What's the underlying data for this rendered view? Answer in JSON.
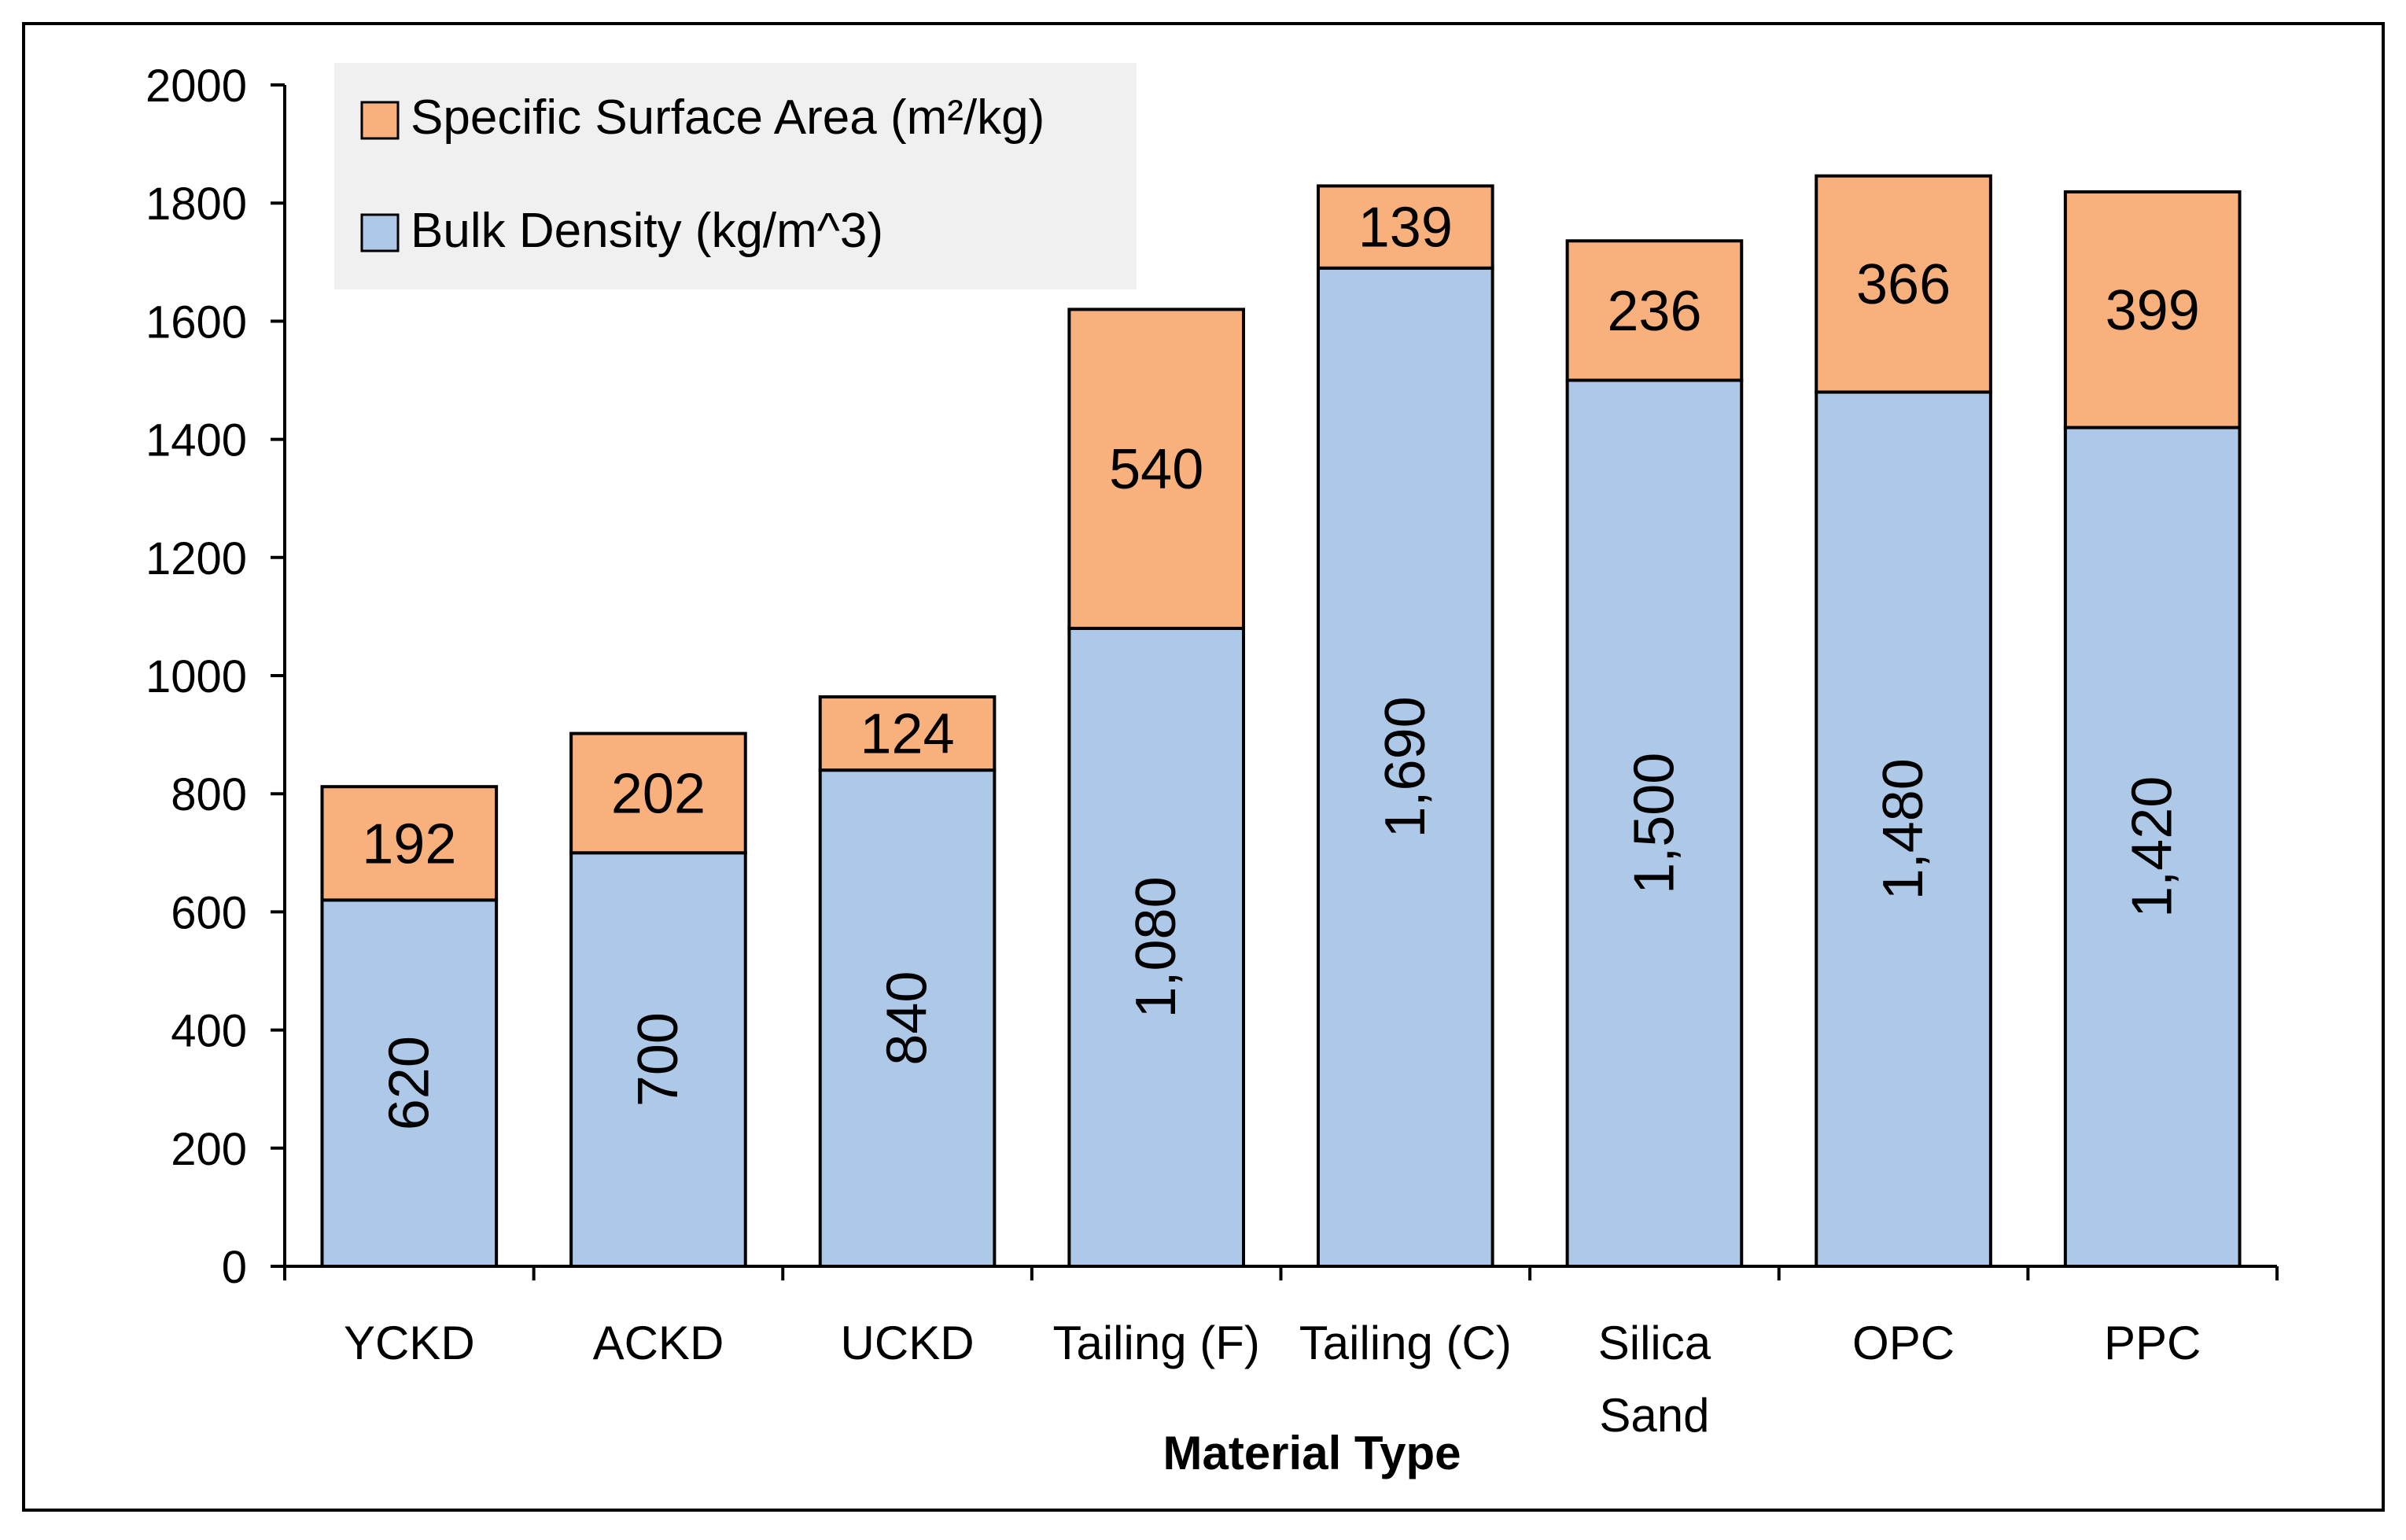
{
  "chart_data": {
    "type": "bar",
    "stacked": true,
    "title": "",
    "xlabel": "Material Type",
    "ylabel": "",
    "ylim": [
      0,
      2000
    ],
    "yticks": [
      0,
      200,
      400,
      600,
      800,
      1000,
      1200,
      1400,
      1600,
      1800,
      2000
    ],
    "categories": [
      [
        "YCKD"
      ],
      [
        "ACKD"
      ],
      [
        "UCKD"
      ],
      [
        "Tailing (F)"
      ],
      [
        "Tailing (C)"
      ],
      [
        "Silica",
        "Sand"
      ],
      [
        "OPC"
      ],
      [
        "PPC"
      ]
    ],
    "series": [
      {
        "name": "Bulk Density (kg/m^3)",
        "color": "#aec8e8",
        "values": [
          620,
          700,
          840,
          1080,
          1690,
          1500,
          1480,
          1420
        ],
        "labels": [
          "620",
          "700",
          "840",
          "1,080",
          "1,690",
          "1,500",
          "1,480",
          "1,420"
        ],
        "label_rotation": "vertical"
      },
      {
        "name": "Specific Surface Area (m²/kg)",
        "color": "#f8b07c",
        "values": [
          192,
          202,
          124,
          540,
          139,
          236,
          366,
          399
        ],
        "labels": [
          "192",
          "202",
          "124",
          "540",
          "139",
          "236",
          "366",
          "399"
        ],
        "label_rotation": "horizontal"
      }
    ],
    "legend": {
      "placement": "top-left",
      "entries": [
        "Specific Surface Area (m²/kg)",
        "Bulk Density (kg/m^3)"
      ],
      "background": "#f0f0f0"
    },
    "grid": false
  }
}
